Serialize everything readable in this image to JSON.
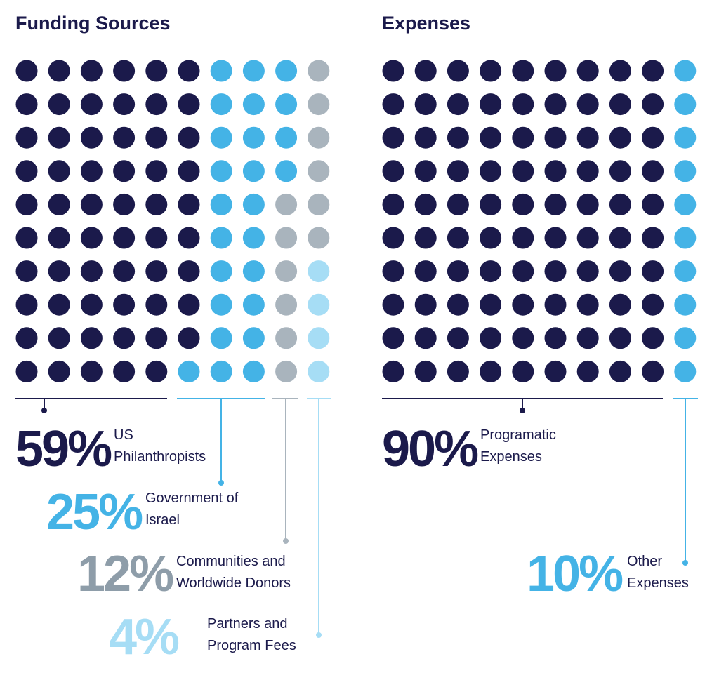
{
  "chart_data": [
    {
      "type": "waffle",
      "title": "Funding Sources",
      "categories": [
        "US Philanthropists",
        "Government of Israel",
        "Communities and Worldwide Donors",
        "Partners and Program Fees"
      ],
      "values": [
        59,
        25,
        12,
        4
      ],
      "value_labels": [
        "59%",
        "25%",
        "12%",
        "4%"
      ],
      "colors": [
        "#1b1a4b",
        "#44b3e6",
        "#a9b4bd",
        "#a6ddf5"
      ]
    },
    {
      "type": "waffle",
      "title": "Expenses",
      "categories": [
        "Programatic Expenses",
        "Other Expenses"
      ],
      "values": [
        90,
        10
      ],
      "value_labels": [
        "90%",
        "10%"
      ],
      "colors": [
        "#1b1a4b",
        "#44b3e6"
      ]
    }
  ]
}
